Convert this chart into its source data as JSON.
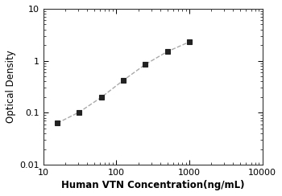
{
  "x_values": [
    15.6,
    31.25,
    62.5,
    125,
    250,
    500,
    1000
  ],
  "y_values": [
    0.063,
    0.103,
    0.198,
    0.42,
    0.85,
    1.5,
    2.3
  ],
  "xlabel": "Human VTN Concentration(ng/mL)",
  "ylabel": "Optical Density",
  "xlim": [
    10,
    10000
  ],
  "ylim": [
    0.01,
    10
  ],
  "xticks": [
    10,
    100,
    1000,
    10000
  ],
  "yticks": [
    0.01,
    0.1,
    1,
    10
  ],
  "ytick_labels": [
    "0.01",
    "0.1",
    "1",
    "10"
  ],
  "xtick_labels": [
    "10",
    "100",
    "1000",
    "10000"
  ],
  "line_color": "#aaaaaa",
  "marker_color": "#222222",
  "marker": "s",
  "marker_size": 4.5,
  "line_style": "--",
  "line_width": 1.0,
  "xlabel_fontsize": 8.5,
  "ylabel_fontsize": 8.5,
  "tick_fontsize": 8,
  "background_color": "#ffffff"
}
